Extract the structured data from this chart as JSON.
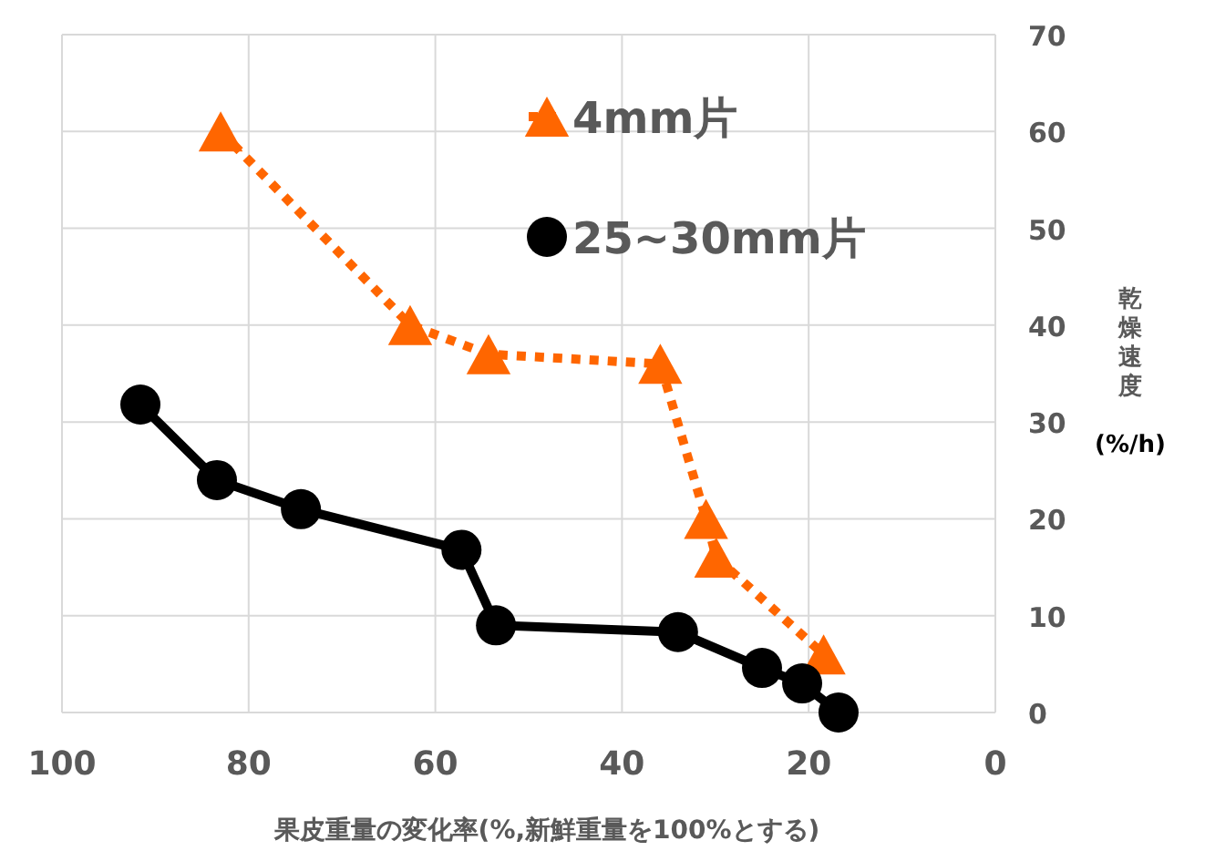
{
  "chart_data": {
    "type": "line",
    "xlabel": "果皮重量の変化率(%,新鮮重量を100%とする)",
    "ylabel": "乾燥速度(%/h)",
    "xlim": [
      100,
      0
    ],
    "xticks": [
      100,
      80,
      60,
      40,
      20,
      0
    ],
    "ylim": [
      0,
      70
    ],
    "yticks": [
      0,
      10,
      20,
      30,
      40,
      50,
      60,
      70
    ],
    "grid": true,
    "legend": "top",
    "series": [
      {
        "name": "4mm片",
        "color": "#ff6600",
        "marker": "triangle",
        "line_style": "dotted",
        "x": [
          83,
          62.7,
          54.3,
          35.9,
          31,
          29.9,
          18.4
        ],
        "values": [
          60,
          40,
          37,
          36,
          20,
          16,
          6
        ]
      },
      {
        "name": "25~30mm片",
        "color": "#000000",
        "marker": "circle",
        "line_style": "solid",
        "x": [
          91.6,
          83.4,
          74.4,
          57.2,
          53.5,
          34,
          25,
          20.7,
          16.8
        ],
        "values": [
          31.8,
          24,
          21,
          16.8,
          9,
          8.3,
          4.6,
          3,
          0
        ]
      }
    ]
  }
}
